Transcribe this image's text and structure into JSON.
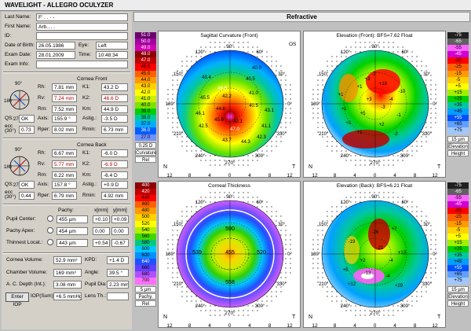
{
  "app": {
    "title": "WAVELIGHT  -  ALLEGRO OCULYZER"
  },
  "patient": {
    "last_name_label": "Last Name:",
    "last_name": "F'  .  .  ·  -",
    "first_name_label": "First Name:",
    "first_name": "Arb.... .",
    "id_label": "ID:",
    "id": "",
    "dob_label": "Date of Birth:",
    "dob": "26.05.1986",
    "eye_label": "Eye:",
    "eye": "Left",
    "exam_date_label": "Exam Date:",
    "exam_date": "28.01.2009",
    "time_label": "Time:",
    "time": "10:48:34",
    "exam_info_label": "Exam Info:",
    "exam_info": ""
  },
  "cornea_front": {
    "title": "Cornea Front",
    "rows": [
      {
        "l1": "Rh:",
        "v1": "7.81 mm",
        "l2": "K1:",
        "v2": "43.2 D",
        "red": false
      },
      {
        "l1": "Rv:",
        "v1": "7.24 mm",
        "l2": "K2:",
        "v2": "46.6 D",
        "red": true
      },
      {
        "l1": "Rm:",
        "v1": "7.52 mm",
        "l2": "Km:",
        "v2": "44.9 D",
        "red": false
      }
    ],
    "qs_label": "QS:",
    "qs": "OK",
    "axis_label": "Axis:",
    "axis": "155.9 °",
    "astig_label": "Astig.:",
    "astig": "-3.5 D",
    "ecc_label": "ecc (30°)",
    "ecc": "0.73",
    "rper_label": "Rper:",
    "rper": "8.02 mm",
    "rmin_label": "Rmin:",
    "rmin": "6.73 mm"
  },
  "cornea_back": {
    "title": "Cornea Back",
    "rows": [
      {
        "l1": "Rh:",
        "v1": "6.67 mm",
        "l2": "K1:",
        "v2": "-6.0 D",
        "red": false
      },
      {
        "l1": "Rv:",
        "v1": "5.77 mm",
        "l2": "K2:",
        "v2": "-6.9 D",
        "red": true
      },
      {
        "l1": "Rm:",
        "v1": "6.22 mm",
        "l2": "Km:",
        "v2": "-6.4 D",
        "red": false
      }
    ],
    "qs_label": "QS:",
    "qs": "OK",
    "axis_label": "Axis:",
    "axis": "157.8 °",
    "astig_label": "Astig.:",
    "astig": "+0.9 D",
    "ecc_label": "ecc (30°)",
    "ecc": "0.44",
    "rper_label": "Rper:",
    "rper": "6.79 mm",
    "rmin_label": "Rmin:",
    "rmin": "4.92 mm"
  },
  "pachy": {
    "col_pachy": "Pachy:",
    "col_x": "x[mm]",
    "col_y": "y[mm]",
    "rows": [
      {
        "label": "Pupil Center:",
        "pachy": "455 µm",
        "x": "+0.10",
        "y": "+0.09"
      },
      {
        "label": "Pachy Apex:",
        "pachy": "454 µm",
        "x": "0.00",
        "y": "0.00"
      },
      {
        "label": "Thinnest Locat.:",
        "pachy": "443 µm",
        "x": "+0.54",
        "y": "-0.67"
      }
    ]
  },
  "volumes": {
    "cornea_volume_label": "Cornea Volume:",
    "cornea_volume": "52.9 mm³",
    "kpd_label": "KPD:",
    "kpd": "+1.4 D",
    "chamber_volume_label": "Chamber Volume:",
    "chamber_volume": "169 mm³",
    "angle_label": "Angle:",
    "angle": "39.5 °",
    "acd_label": "A. C. Depth (Int.):",
    "acd": "3.08 mm",
    "pupil_dia_label": "Pupil Dia:",
    "pupil_dia": "2.23 mm",
    "enter_iop_label": "Enter IOP",
    "iop_sum_label": "IOP(Sum):",
    "iop_sum": "+6.5 mmHg",
    "lens_th_label": "Lens Th.:",
    "lens_th": ""
  },
  "refractive": {
    "header": "Refractive"
  },
  "scales": {
    "curvature": {
      "values": [
        "51.0",
        "50.0",
        "49.0",
        "48.0",
        "47.0",
        "46.0",
        "45.0",
        "44.0",
        "43.0",
        "42.0",
        "41.0",
        "40.0",
        "39.0",
        "38.0",
        "37.0",
        "36.0",
        "27.0"
      ],
      "colors": [
        "#6a006a",
        "#a000a0",
        "#d000b0",
        "#8b0000",
        "#c00000",
        "#ff0000",
        "#ff6000",
        "#ff9a00",
        "#ffd200",
        "#ffff00",
        "#c8f000",
        "#80e000",
        "#00d000",
        "#00c8a0",
        "#00b0ff",
        "#0060ff",
        "#7090ff"
      ],
      "step_label": "0.25 D",
      "footer": "Curvature",
      "sub": "Rel"
    },
    "thickness": {
      "values": [
        "400",
        "420",
        "440",
        "460",
        "480",
        "500",
        "520",
        "540",
        "560",
        "580",
        "600",
        "620",
        "640",
        "660",
        "680",
        "700"
      ],
      "colors": [
        "#8b0000",
        "#c00000",
        "#ff0000",
        "#ff6000",
        "#ff9a00",
        "#ffd200",
        "#ffff00",
        "#b0f000",
        "#40d800",
        "#00c880",
        "#00c8ff",
        "#0090ff",
        "#2050ff",
        "#6040ff",
        "#b050ff",
        "#ff70ff"
      ],
      "step_label": "5 µm",
      "footer": "Pachy.",
      "sub": "Rel"
    },
    "elevation_front": {
      "values": [
        "-75",
        "-65",
        "-55",
        "-45",
        "-35",
        "-25",
        "-15",
        "-5",
        "+5",
        "+15",
        "+25",
        "+35",
        "+45",
        "+55",
        "+65",
        "+75"
      ],
      "colors": [
        "#202020",
        "#606060",
        "#ff60ff",
        "#d000d0",
        "#ff0000",
        "#ff6000",
        "#ff9a00",
        "#ffd200",
        "#ffff00",
        "#a0f000",
        "#00d000",
        "#00c8a0",
        "#00a0ff",
        "#0050ff",
        "#60a0ff",
        "#a0c8ff"
      ],
      "step_label": "15 µm",
      "footer": "Elevation",
      "sub": "Height"
    },
    "elevation_back": {
      "values": [
        "-75",
        "-65",
        "-55",
        "-45",
        "-35",
        "-25",
        "-15",
        "-5",
        "+5",
        "+15",
        "+25",
        "+35",
        "+45",
        "+55",
        "+65",
        "+75"
      ],
      "colors": [
        "#202020",
        "#606060",
        "#ff60ff",
        "#d000d0",
        "#ff0000",
        "#ff6000",
        "#ff9a00",
        "#ffd200",
        "#ffff00",
        "#a0f000",
        "#00d000",
        "#00c8a0",
        "#00a0ff",
        "#0050ff",
        "#60a0ff",
        "#a0c8ff"
      ],
      "step_label": "15 µm",
      "footer": "Elevation",
      "sub": "Height"
    }
  },
  "maps": {
    "sagittal": {
      "title": "Sagittal Curvature (Front)",
      "eye_label": "OS",
      "left_letter": "N",
      "right_letter": "T",
      "top_angle": "90°",
      "bottom_angle": "270°",
      "angles": [
        "60°",
        "30°",
        "120°",
        "150°",
        "180°",
        "210°",
        "240°",
        "300°",
        "330°",
        "0°"
      ],
      "ticks": [
        "12",
        "8",
        "4",
        "0",
        "4",
        "8",
        "12"
      ],
      "values": [
        "43.4",
        "46.8",
        "40.5",
        "41.0",
        "45.5",
        "42.2",
        "40.5",
        "44.8",
        "46.1",
        "45.6",
        "42.5",
        "41.1",
        "42.1",
        "43.1",
        "47.0",
        "42.3",
        "43.7",
        "44.3",
        "40.0"
      ]
    },
    "elevation_front": {
      "title": "Elevation (Front): BFS=7.62 Float",
      "left_letter": "N",
      "right_letter": "T",
      "top_angle": "90°",
      "bottom_angle": "270°",
      "angles": [
        "60°",
        "30°",
        "120°",
        "150°",
        "180°",
        "210°",
        "240°",
        "300°",
        "330°",
        "0°"
      ],
      "ticks": [
        "12",
        "8",
        "4",
        "0",
        "4",
        "8",
        "12"
      ],
      "values": [
        "-7",
        "+10",
        "+1",
        "+3",
        "-10",
        "+1",
        "+3",
        "-4",
        "+1",
        "-3",
        "+5",
        "-1",
        "+1",
        "+2",
        "-2",
        "+1"
      ]
    },
    "thickness": {
      "title": "Corneal Thickness",
      "left_letter": "N",
      "right_letter": "T",
      "top_angle": "90°",
      "bottom_angle": "270°",
      "angles": [
        "60°",
        "30°",
        "120°",
        "150°",
        "180°",
        "210°",
        "240°",
        "300°",
        "330°",
        "0°"
      ],
      "ticks": [
        "12",
        "8",
        "4",
        "0",
        "4",
        "8",
        "12"
      ],
      "values": [
        "590",
        "539",
        "455",
        "520",
        "558"
      ]
    },
    "elevation_back": {
      "title": "Elevation (Back): BFS=6.21 Float",
      "left_letter": "N",
      "right_letter": "T",
      "top_angle": "90°",
      "bottom_angle": "270°",
      "angles": [
        "60°",
        "30°",
        "120°",
        "150°",
        "180°",
        "210°",
        "240°",
        "300°",
        "330°",
        "0°"
      ],
      "ticks": [
        "12",
        "8",
        "4",
        "0",
        "4",
        "8",
        "12"
      ],
      "values": [
        "-26",
        "-19",
        "+7",
        "-21",
        "+2",
        "-4",
        "+13",
        "+5",
        "-13",
        "-4",
        "+12",
        "+29"
      ]
    }
  }
}
